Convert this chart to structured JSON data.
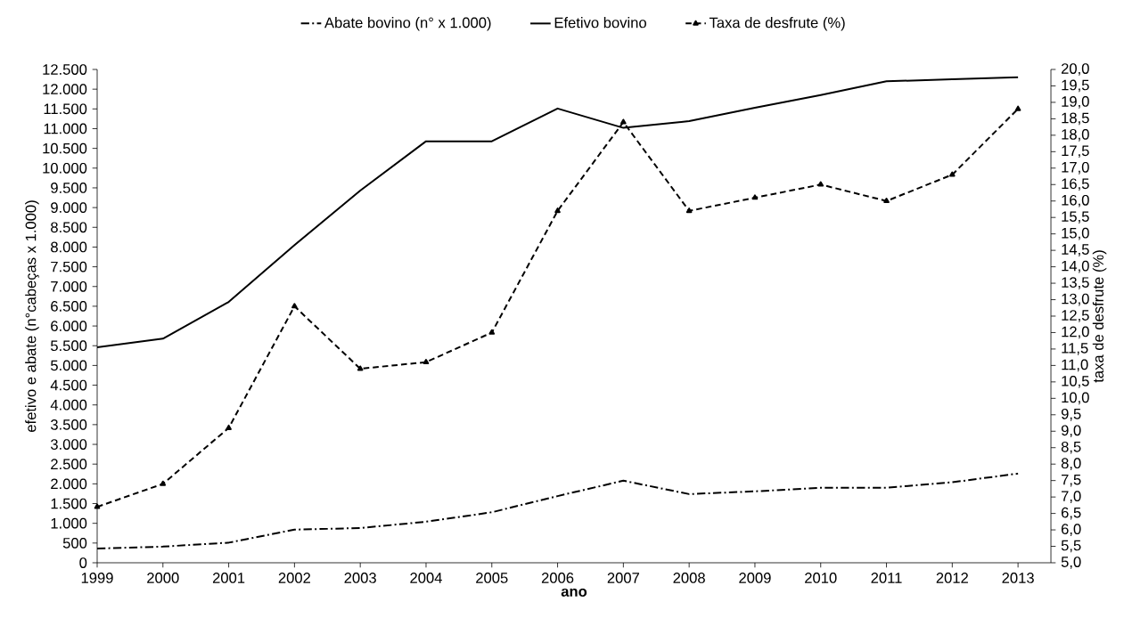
{
  "chart_data": {
    "type": "line",
    "xlabel": "ano",
    "ylabel": "efetivo e abate (n°cabeças x 1.000)",
    "y2label": "taxa de desfrute (%)",
    "x": [
      1999,
      2000,
      2001,
      2002,
      2003,
      2004,
      2005,
      2006,
      2007,
      2008,
      2009,
      2010,
      2011,
      2012,
      2013
    ],
    "series": [
      {
        "name": "Abate bovino (n° x 1.000)",
        "color": "#000000",
        "line_style": "dashdot",
        "marker": "none",
        "values": [
          360,
          410,
          510,
          840,
          880,
          1040,
          1280,
          1690,
          2080,
          1740,
          1810,
          1900,
          1900,
          2040,
          2260
        ]
      },
      {
        "name": "Efetivo bovino",
        "color": "#000000",
        "line_style": "solid",
        "marker": "none",
        "values": [
          5460,
          5680,
          6610,
          8050,
          9430,
          10680,
          10680,
          11510,
          11020,
          11190,
          11530,
          11850,
          12200,
          12250,
          12300
        ]
      },
      {
        "name": "Taxa de desfrute (%)",
        "color": "#000000",
        "line_style": "dashed",
        "marker": "triangle",
        "axis": "y2",
        "values": [
          6.7,
          7.4,
          9.1,
          12.8,
          10.9,
          11.1,
          12.0,
          15.7,
          18.4,
          15.7,
          16.1,
          16.5,
          16.0,
          16.8,
          18.8
        ]
      }
    ],
    "xlim": [
      1999,
      2013.5
    ],
    "xticks": [
      1999,
      2000,
      2001,
      2002,
      2003,
      2004,
      2005,
      2006,
      2007,
      2008,
      2009,
      2010,
      2011,
      2012,
      2013
    ],
    "ylim": [
      0,
      12500
    ],
    "yticks": [
      0,
      500,
      {
        "value": 1000,
        "label": "1.000"
      },
      {
        "value": 1500,
        "label": "1.500"
      },
      {
        "value": 2000,
        "label": "2.000"
      },
      {
        "value": 2500,
        "label": "2.500"
      },
      {
        "value": 3000,
        "label": "3.000"
      },
      {
        "value": 3500,
        "label": "3.500"
      },
      {
        "value": 4000,
        "label": "4.000"
      },
      {
        "value": 4500,
        "label": "4.500"
      },
      {
        "value": 5000,
        "label": "5.000"
      },
      {
        "value": 5500,
        "label": "5.500"
      },
      {
        "value": 6000,
        "label": "6.000"
      },
      {
        "value": 6500,
        "label": "6.500"
      },
      {
        "value": 7000,
        "label": "7.000"
      },
      {
        "value": 7500,
        "label": "7.500"
      },
      {
        "value": 8000,
        "label": "8.000"
      },
      {
        "value": 8500,
        "label": "8.500"
      },
      {
        "value": 9000,
        "label": "9.000"
      },
      {
        "value": 9500,
        "label": "9.500"
      },
      {
        "value": 10000,
        "label": "10.000"
      },
      {
        "value": 10500,
        "label": "10.500"
      },
      {
        "value": 11000,
        "label": "11.000"
      },
      {
        "value": 11500,
        "label": "11.500"
      },
      {
        "value": 12000,
        "label": "12.000"
      },
      {
        "value": 12500,
        "label": "12.500"
      }
    ],
    "y2lim": [
      5,
      20
    ],
    "y2ticks": [
      {
        "value": 5,
        "label": "5,0"
      },
      {
        "value": 5.5,
        "label": "5,5"
      },
      {
        "value": 6,
        "label": "6,0"
      },
      {
        "value": 6.5,
        "label": "6,5"
      },
      {
        "value": 7,
        "label": "7,0"
      },
      {
        "value": 7.5,
        "label": "7,5"
      },
      {
        "value": 8,
        "label": "8,0"
      },
      {
        "value": 8.5,
        "label": "8,5"
      },
      {
        "value": 9,
        "label": "9,0"
      },
      {
        "value": 9.5,
        "label": "9,5"
      },
      {
        "value": 10,
        "label": "10,0"
      },
      {
        "value": 10.5,
        "label": "10,5"
      },
      {
        "value": 11,
        "label": "11,0"
      },
      {
        "value": 11.5,
        "label": "11,5"
      },
      {
        "value": 12,
        "label": "12,0"
      },
      {
        "value": 12.5,
        "label": "12,5"
      },
      {
        "value": 13,
        "label": "13,0"
      },
      {
        "value": 13.5,
        "label": "13,5"
      },
      {
        "value": 14,
        "label": "14,0"
      },
      {
        "value": 14.5,
        "label": "14,5"
      },
      {
        "value": 15,
        "label": "15,0"
      },
      {
        "value": 15.5,
        "label": "15,5"
      },
      {
        "value": 16,
        "label": "16,0"
      },
      {
        "value": 16.5,
        "label": "16,5"
      },
      {
        "value": 17,
        "label": "17,0"
      },
      {
        "value": 17.5,
        "label": "17,5"
      },
      {
        "value": 18,
        "label": "18,0"
      },
      {
        "value": 18.5,
        "label": "18,5"
      },
      {
        "value": 19,
        "label": "19,0"
      },
      {
        "value": 19.5,
        "label": "19,5"
      },
      {
        "value": 20,
        "label": "20,0"
      }
    ],
    "grid": false,
    "legend": "top"
  }
}
